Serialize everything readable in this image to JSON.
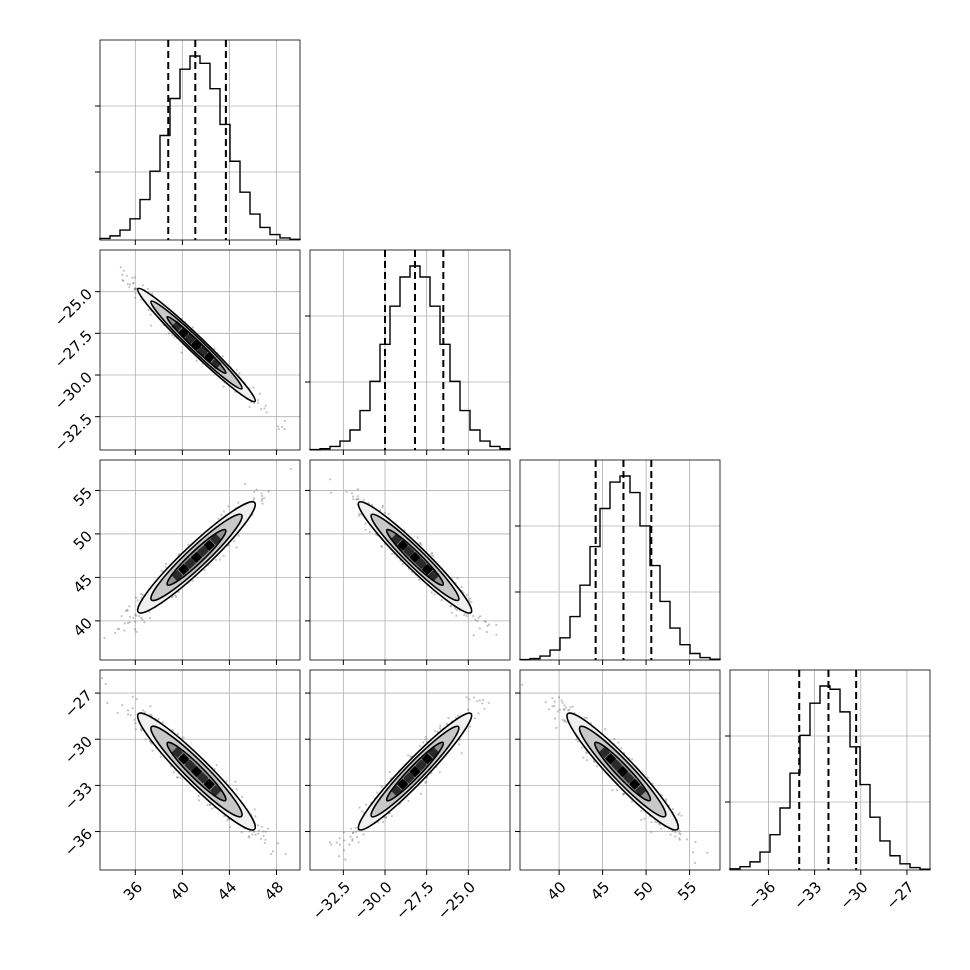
{
  "chart_data": {
    "type": "scatter",
    "title": "",
    "parameters": [
      {
        "name": "",
        "range": [
          33,
          50
        ],
        "ticks": [
          36,
          40,
          44,
          48
        ],
        "tick_labels": [
          "36",
          "40",
          "44",
          "48"
        ],
        "mean": 41.2,
        "sd": 2.5,
        "quantiles": [
          38.8,
          41.1,
          43.7
        ]
      },
      {
        "name": "",
        "range": [
          -34.5,
          -22.5
        ],
        "ticks": [
          -32.5,
          -30.0,
          -27.5,
          -25.0
        ],
        "tick_labels": [
          "−32.5",
          "−30.0",
          "−27.5",
          "−25.0"
        ],
        "mean": -28.2,
        "sd": 1.7,
        "quantiles": [
          -30.0,
          -28.2,
          -26.5
        ]
      },
      {
        "name": "",
        "range": [
          35.5,
          58.5
        ],
        "ticks": [
          40,
          45,
          50,
          55
        ],
        "tick_labels": [
          "40",
          "45",
          "50",
          "55"
        ],
        "mean": 47.3,
        "sd": 3.2,
        "quantiles": [
          44.2,
          47.4,
          50.6
        ]
      },
      {
        "name": "",
        "range": [
          -38.5,
          -25.5
        ],
        "ticks": [
          -36,
          -33,
          -30,
          -27
        ],
        "tick_labels": [
          "−36",
          "−33",
          "−30",
          "−27"
        ],
        "mean": -32.1,
        "sd": 1.9,
        "quantiles": [
          -34.0,
          -32.1,
          -30.3
        ]
      }
    ],
    "correlations": [
      {
        "pair": [
          0,
          1
        ],
        "rho": -0.98
      },
      {
        "pair": [
          0,
          2
        ],
        "rho": 0.95
      },
      {
        "pair": [
          1,
          2
        ],
        "rho": -0.96
      },
      {
        "pair": [
          0,
          3
        ],
        "rho": -0.95
      },
      {
        "pair": [
          1,
          3
        ],
        "rho": 0.96
      },
      {
        "pair": [
          2,
          3
        ],
        "rho": -0.95
      }
    ],
    "grid": true,
    "legend": "none"
  }
}
